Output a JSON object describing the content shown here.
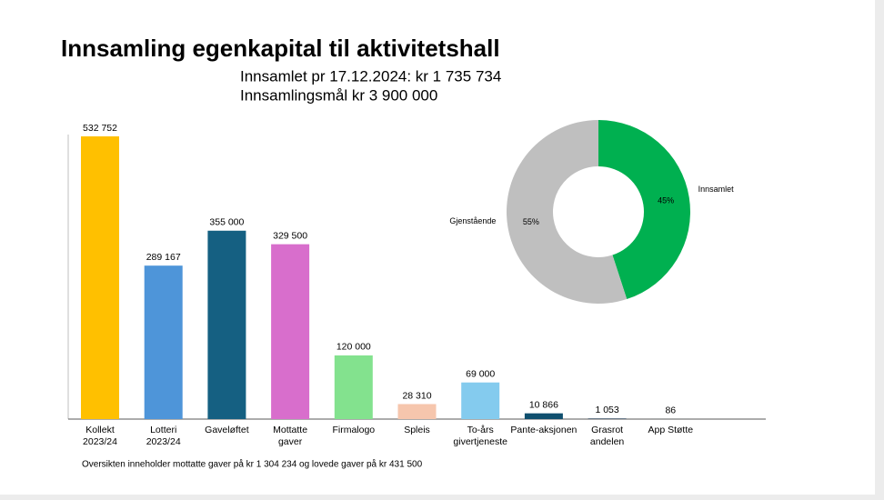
{
  "title": "Innsamling egenkapital til aktivitetshall",
  "subtitle_lines": [
    "Innsamlet pr 17.12.2024: kr 1 735 734",
    "Innsamlingsmål kr 3 900 000"
  ],
  "footnote": "Oversikten inneholder mottatte gaver på kr 1 304 234 og lovede gaver på kr 431 500",
  "chart_data": [
    {
      "type": "bar",
      "categories": [
        "Kollekt\n2023/24",
        "Lotteri\n2023/24",
        "Gaveløftet",
        "Mottatte\ngaver",
        "Firmalogo",
        "Spleis",
        "To-års\ngivertjeneste",
        "Pante-aksjonen",
        "Grasrot\nandelen",
        "App Støtte"
      ],
      "values": [
        532752,
        289167,
        355000,
        329500,
        120000,
        28310,
        69000,
        10866,
        1053,
        86
      ],
      "value_labels": [
        "532 752",
        "289 167",
        "355 000",
        "329 500",
        "120 000",
        "28 310",
        "69 000",
        "10 866",
        "1 053",
        "86"
      ],
      "colors": [
        "#ffc000",
        "#4e95d9",
        "#156082",
        "#d86ecc",
        "#83e28e",
        "#f6c6ad",
        "#84cbee",
        "#0f4f6e",
        "#0e2841",
        "#0e2841"
      ]
    },
    {
      "type": "donut",
      "categories": [
        "Innsamlet",
        "Gjenstående"
      ],
      "values": [
        45,
        55
      ],
      "value_labels": [
        "45%",
        "55%"
      ],
      "colors": [
        "#00b050",
        "#bfbfbf"
      ]
    }
  ]
}
